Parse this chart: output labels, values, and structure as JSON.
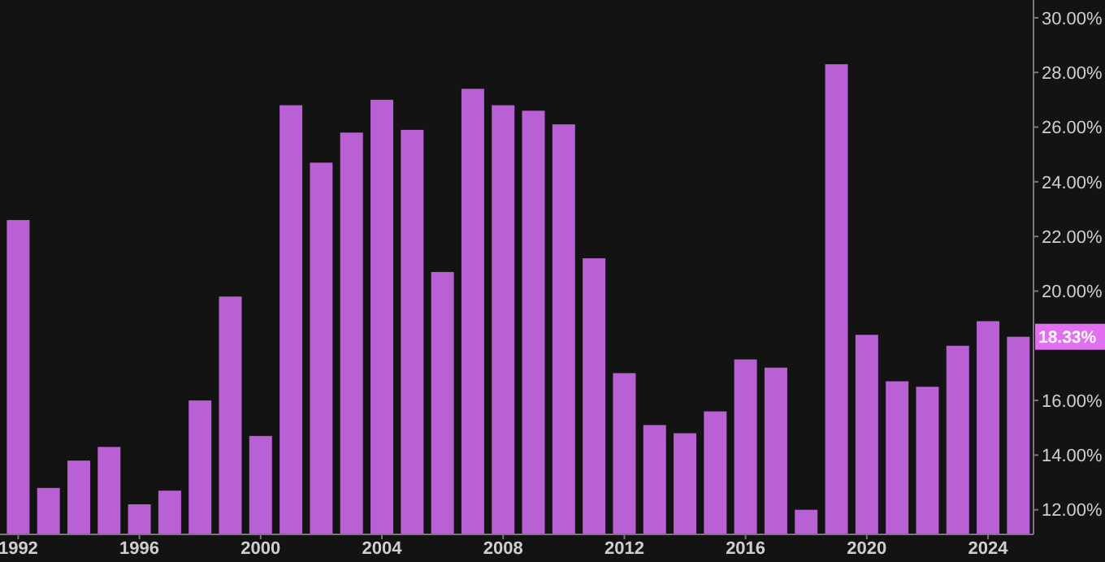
{
  "chart_data": {
    "type": "bar",
    "x": [
      1992,
      1993,
      1994,
      1995,
      1996,
      1997,
      1998,
      1999,
      2000,
      2001,
      2002,
      2003,
      2004,
      2005,
      2006,
      2007,
      2008,
      2009,
      2010,
      2011,
      2012,
      2013,
      2014,
      2015,
      2016,
      2017,
      2018,
      2019,
      2020,
      2021,
      2022,
      2023,
      2024,
      2025
    ],
    "values": [
      22.6,
      12.8,
      13.8,
      14.3,
      12.2,
      12.7,
      16.0,
      19.8,
      14.7,
      26.8,
      24.7,
      25.8,
      27.0,
      25.9,
      20.7,
      27.4,
      26.8,
      26.6,
      26.1,
      21.2,
      17.0,
      15.1,
      14.8,
      15.6,
      17.5,
      17.2,
      12.0,
      28.3,
      18.4,
      16.7,
      16.5,
      18.0,
      18.9,
      18.33
    ],
    "color": "#b960d4",
    "xlim": [
      1991.4,
      2025.5
    ],
    "xticks": [
      1992,
      1996,
      2000,
      2004,
      2008,
      2012,
      2016,
      2020,
      2024
    ],
    "ylim": [
      11.1,
      30.65
    ],
    "yticks": [
      {
        "value": 12,
        "label": "12.00%"
      },
      {
        "value": 14,
        "label": "14.00%"
      },
      {
        "value": 16,
        "label": "16.00%"
      },
      {
        "value": 20,
        "label": "20.00%"
      },
      {
        "value": 22,
        "label": "22.00%"
      },
      {
        "value": 24,
        "label": "24.00%"
      },
      {
        "value": 26,
        "label": "26.00%"
      },
      {
        "value": 28,
        "label": "28.00%"
      },
      {
        "value": 30,
        "label": "30.00%"
      }
    ],
    "annotations": [
      {
        "text": "18.33%",
        "y": 18.33
      }
    ],
    "grid": false
  }
}
